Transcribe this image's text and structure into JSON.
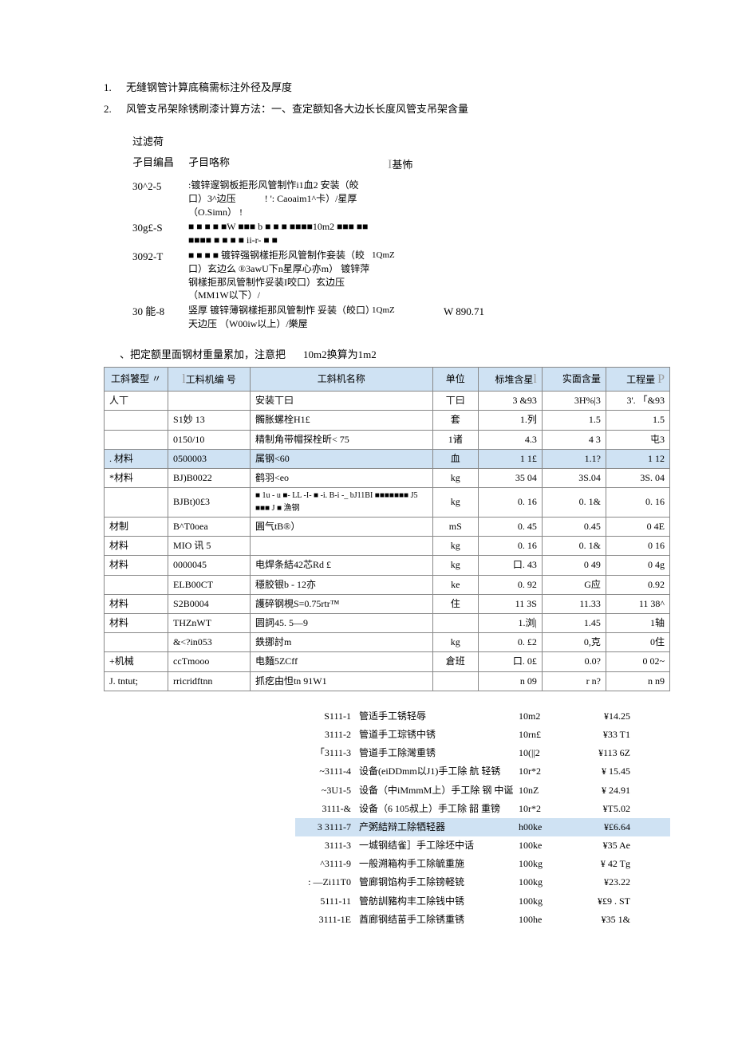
{
  "list": [
    {
      "num": "1.",
      "text": "无缝钢管计算底稿需标注外径及厚度"
    },
    {
      "num": "2.",
      "text": "风管支吊架除锈刷漆计算方法：一、查定额知各大边长长度风管支吊架含量"
    }
  ],
  "filter_label": "过滤荷",
  "block1": {
    "head": {
      "h1": "孑目编昌",
      "h2": "孑目咯称",
      "h3_bar": "I",
      "h3": "基怖"
    },
    "rows": [
      {
        "c1": "30^2-5",
        "c2": ":镀锌邃钢板拒形风管制怍i1血2 安装（皎口）3^边压　　　!\n': Caoaim1^卡）/星厚（O.Simn） !",
        "c3": "",
        "c4": ""
      },
      {
        "c1": "30g£-S",
        "c2": "■ ■ ■ ■ ■W ■■■ b ■ ■ ■ ■■■■10m2\n■■■ ■■ ■■■■ ■ ■ ■ ■ ii-r- ■ ■",
        "c3": "",
        "c4": ""
      },
      {
        "c1": "3092-T",
        "c2": "■ ■ ■ ■ 镀锌强钢樣拒形风管制作妾装（皎口）玄边么 ®3awU下n星厚心亦m） 镀锌萍钢樣拒那凤管制怍妥装I咬口）玄边压 （MM1W以下）/",
        "c3": "1QmZ",
        "c4": ""
      },
      {
        "c1": "30 能-8",
        "c2": "竖厚 镀锌薄钢樣拒那风管制怍 妥装（皎口）天边压 （W00iw以上）/樂屋",
        "c3": "1QmZ",
        "c4": "W 890.71"
      }
    ]
  },
  "note2": {
    "n1": "、把定额里面钢材重量累加，注意把",
    "n2": "10m2换算为1m2"
  },
  "table2": {
    "headers": [
      "工斜饕型    〃",
      "工料机编 号",
      "工斜机名称",
      "单位",
      "标堆含星",
      "实面含量",
      "工程量"
    ],
    "head_letters": [
      "",
      "l",
      "",
      "",
      "l",
      "",
      "P"
    ],
    "rows": [
      {
        "hl": false,
        "cells": [
          "人丅",
          "",
          "安装丅曰",
          "丅曰",
          "3 &93",
          "3H%|3",
          "3'. 「&93"
        ]
      },
      {
        "hl": false,
        "cells": [
          "",
          "S1妙 13",
          "髑胀螺栓H1£",
          "套",
          "1.列",
          "1.5",
          "1.5"
        ]
      },
      {
        "hl": false,
        "cells": [
          "",
          "0150/10",
          "精制角带帽探栓昕< 75",
          "1诸",
          "4.3",
          "4 3",
          "屯3"
        ]
      },
      {
        "hl": true,
        "cells": [
          ". 材料",
          "0500003",
          "属钢<60",
          "血",
          "1 1£",
          "1.1?",
          "1 12"
        ]
      },
      {
        "hl": false,
        "cells": [
          "*材料",
          "BJ)B0022",
          "鹤羽<eo",
          "kg",
          "35 04",
          "3S.04",
          "3S. 04"
        ]
      },
      {
        "hl": false,
        "cells": [
          "",
          "BJBt)0£3",
          "■ 1u - u ■- LL -I- ■ -i. B-i -_ bJ11BI ■■■■■■■ J5 ■■■ J ■ 漁钢",
          "kg",
          "0. 16",
          "0. 1&",
          "0. 16"
        ]
      },
      {
        "hl": false,
        "cells": [
          "材制",
          "B^T0oea",
          "圓气tB®）",
          "mS",
          "0. 45",
          "0.45",
          "0 4E"
        ]
      },
      {
        "hl": false,
        "cells": [
          "材料",
          "MIO 讯 5",
          "",
          "kg",
          "0. 16",
          "0. 1&",
          "0 16"
        ]
      },
      {
        "hl": false,
        "cells": [
          "材料",
          "0000045",
          "电焊条結42芯Rd £",
          "kg",
          "口. 43",
          "0 49",
          "0 4g"
        ]
      },
      {
        "hl": false,
        "cells": [
          "",
          "ELB00CT",
          "穩胶银b - 12亦",
          "ke",
          "0. 92",
          "G应",
          "0.92"
        ]
      },
      {
        "hl": false,
        "cells": [
          "材料",
          "S2B0004",
          "護碎钢梘S=0.75rtr™",
          "住",
          "11 3S",
          "11.33",
          "11 38^"
        ]
      },
      {
        "hl": false,
        "cells": [
          "材料",
          "THZnWT",
          "圆詞45. 5—9",
          "",
          "1.浏|",
          "1.45",
          "1轴"
        ]
      },
      {
        "hl": false,
        "cells": [
          "",
          "&<?in053",
          "鉄挪討m",
          "kg",
          "0. £2",
          "0,克",
          "0住"
        ]
      },
      {
        "hl": false,
        "cells": [
          "+机械",
          "ccTmooo",
          "电麵5ZCff",
          "倉班",
          "口. 0£",
          "0.0?",
          "0 02~"
        ]
      },
      {
        "hl": false,
        "cells": [
          "J. tntut;",
          "rricridftnn",
          "抓疙由怛tn 91W1",
          "",
          "n 09",
          "r n?",
          "n n9"
        ]
      }
    ]
  },
  "block3": {
    "rows": [
      {
        "hl": false,
        "c1": "S111-1",
        "c2": "管适手工锈轻辱",
        "c3": "10m2",
        "c4": "¥14.25"
      },
      {
        "hl": false,
        "c1": "3111-2",
        "c2": "管道手工琮锈中锈",
        "c3": "10rn£",
        "c4": "¥33 T1"
      },
      {
        "hl": false,
        "c1": "「3111-3",
        "c2": "管道手工除灣重锈",
        "c3": "10(||2",
        "c4": "¥113 6Z"
      },
      {
        "hl": false,
        "c1": "~3111-4",
        "c2": "设备(eiDDmm以J1)手工除 航 轻锈",
        "c3": "10r*2",
        "c4": "¥ 15.45"
      },
      {
        "hl": false,
        "c1": "~3U1-5",
        "c2": "设备（中iMmmM上）手工除 钢 中诞",
        "c3": "10nZ",
        "c4": "¥ 24.91"
      },
      {
        "hl": false,
        "c1": "3111-&",
        "c2": "设备（6 105叔上）手工除 韶 重镑",
        "c3": "10r*2",
        "c4": "¥T5.02"
      },
      {
        "hl": true,
        "c1": "3 3111-7",
        "c2": "产粥結辩工除牺轻器",
        "c3": "h00ke",
        "c4": "¥£6.64"
      },
      {
        "hl": false,
        "c1": "3111-3",
        "c2": "一城钢结雀］手工除坯中话",
        "c3": "100ke",
        "c4": "¥35 Ae"
      },
      {
        "hl": false,
        "c1": "^3111-9",
        "c2": "一般溯箱构手工除毓重施",
        "c3": "100kg",
        "c4": "¥ 42 Tg"
      },
      {
        "hl": false,
        "c1": ": —Zi11T0",
        "c2": "管廊钢馅构手工除镑軽铳",
        "c3": "100kg",
        "c4": "¥23.22"
      },
      {
        "hl": false,
        "c1": "5111-11",
        "c2": "管舫訓豬构丰工除钱中锈",
        "c3": "100kg",
        "c4": "¥£9 . ST"
      },
      {
        "hl": false,
        "c1": "3111-1E",
        "c2": "酋廊钢结苗手工除锈重锈",
        "c3": "100he",
        "c4": "¥35 1&"
      }
    ]
  }
}
